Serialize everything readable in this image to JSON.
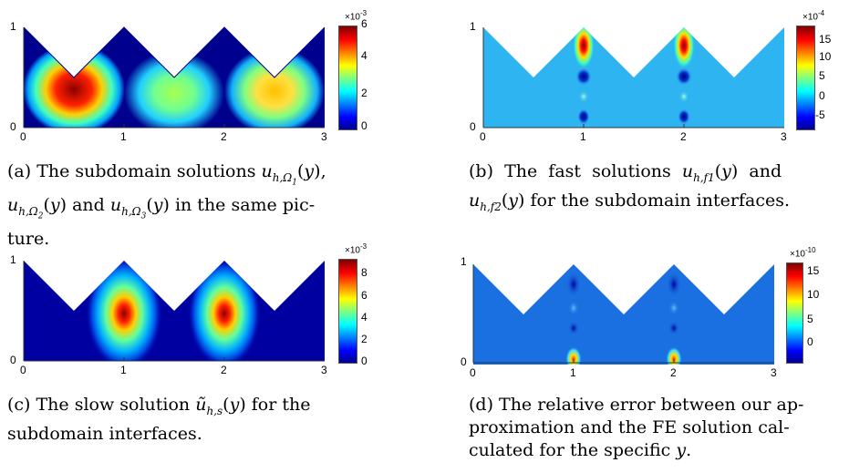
{
  "panels": [
    {
      "id": "a",
      "x_ticks": [
        "0",
        "1",
        "2",
        "3"
      ],
      "y_ticks": [
        "0",
        "1"
      ],
      "colorbar": {
        "exponent": "×10",
        "power": "-3",
        "ticks": [
          "6",
          "4",
          "2",
          "0"
        ]
      },
      "caption_lines": [
        "(a) The subdomain solutions u_{h,Ω1}(y),",
        "u_{h,Ω2}(y) and u_{h,Ω3}(y) in the same pic-",
        "ture."
      ]
    },
    {
      "id": "b",
      "x_ticks": [
        "0",
        "1",
        "2",
        "3"
      ],
      "y_ticks": [
        "0",
        "1"
      ],
      "colorbar": {
        "exponent": "×10",
        "power": "-4",
        "ticks": [
          "15",
          "10",
          "5",
          "0",
          "-5"
        ]
      },
      "caption_lines": [
        "(b) The fast solutions u_{h,f1}(y) and",
        "u_{h,f2}(y) for the subdomain interfaces."
      ]
    },
    {
      "id": "c",
      "x_ticks": [
        "0",
        "1",
        "2",
        "3"
      ],
      "y_ticks": [
        "0",
        "1"
      ],
      "colorbar": {
        "exponent": "×10",
        "power": "-3",
        "ticks": [
          "8",
          "6",
          "4",
          "2",
          "0"
        ]
      },
      "caption_lines": [
        "(c) The slow solution ũ_{h,s}(y) for the",
        "subdomain interfaces."
      ]
    },
    {
      "id": "d",
      "x_ticks": [
        "0",
        "1",
        "2",
        "3"
      ],
      "y_ticks": [
        "0",
        "1"
      ],
      "colorbar": {
        "exponent": "×10",
        "power": "-10",
        "ticks": [
          "15",
          "10",
          "5",
          "0"
        ]
      },
      "caption_lines": [
        "(d) The relative error between our ap-",
        "proximation and the FE solution cal-",
        "culated for the specific y."
      ]
    }
  ],
  "colors": {
    "deep_blue": "#00008f",
    "light_blue": "#1aa8ec",
    "sky_blue": "#2eb4f0",
    "red": "#b30000"
  }
}
